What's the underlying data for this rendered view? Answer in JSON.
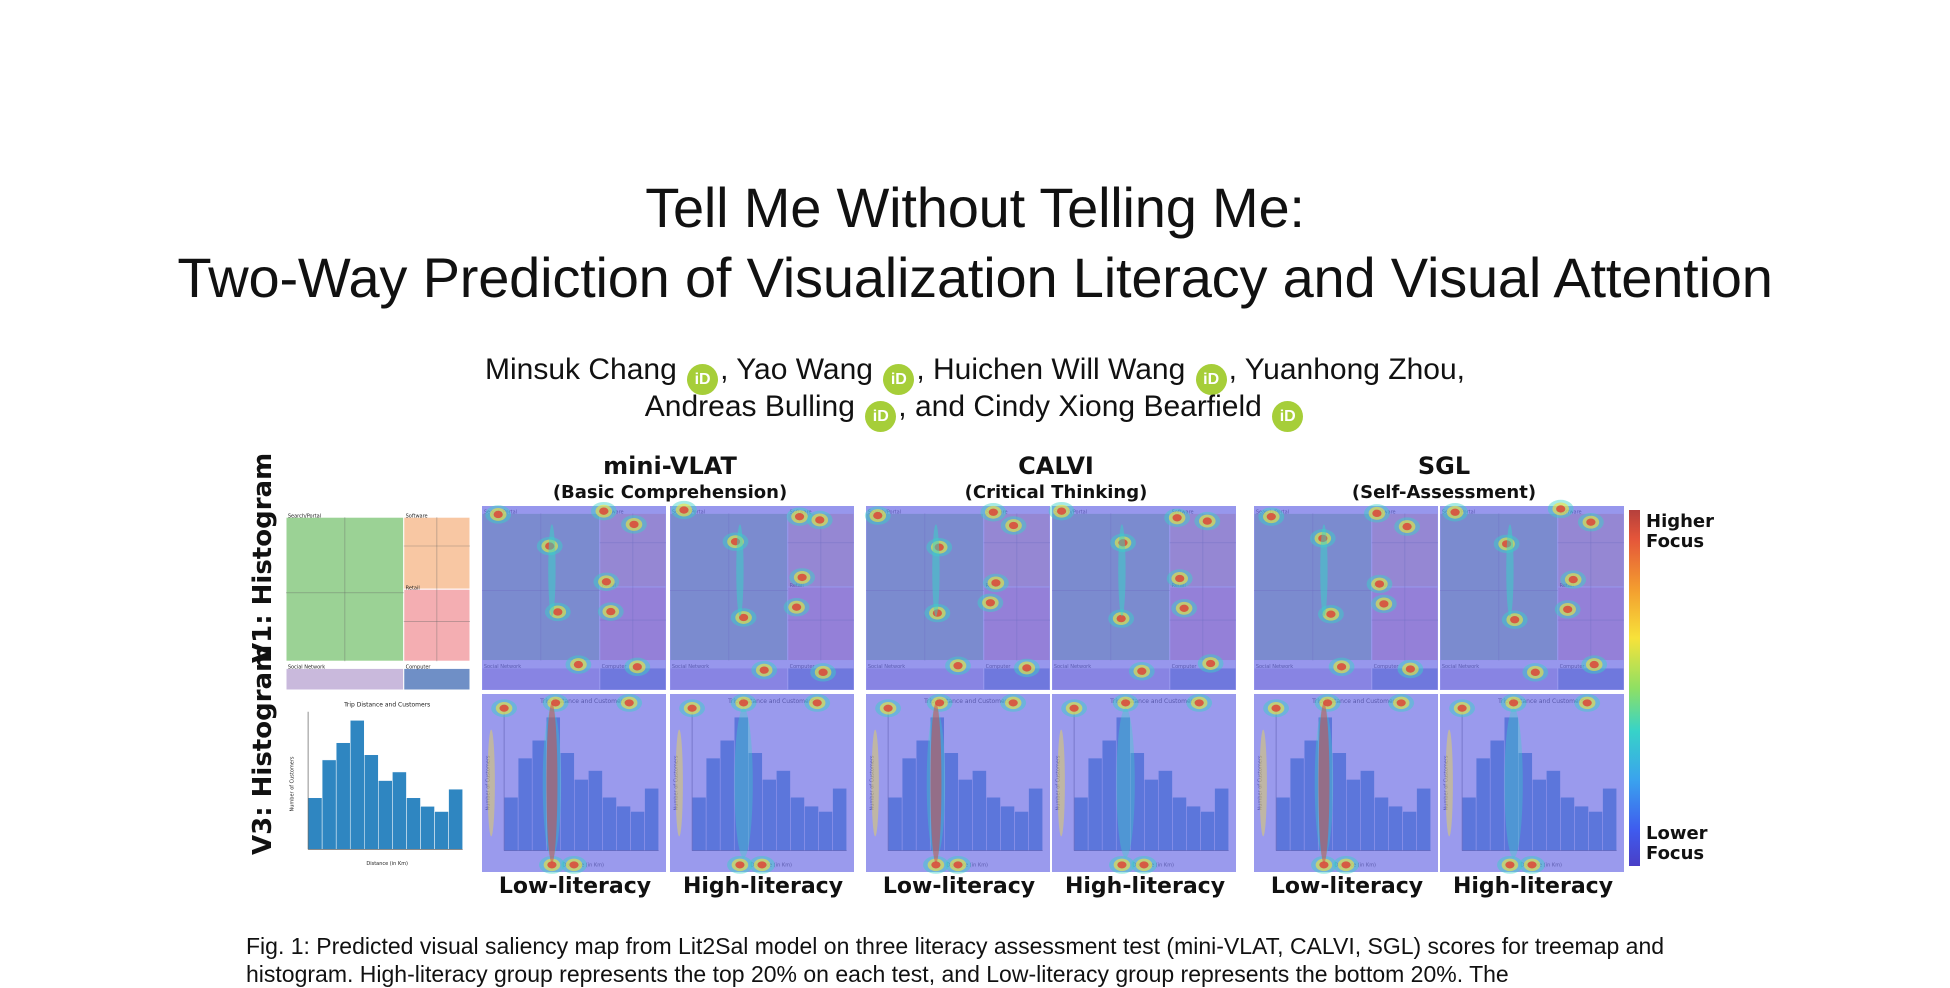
{
  "title": {
    "line1": "Tell Me Without Telling Me:",
    "line2": "Two-Way Prediction of Visualization Literacy and Visual Attention"
  },
  "authors": {
    "line1": [
      {
        "name": "Minsuk Chang",
        "orcid": true,
        "sep": ", "
      },
      {
        "name": "Yao Wang",
        "orcid": true,
        "sep": ", "
      },
      {
        "name": "Huichen Will Wang",
        "orcid": true,
        "sep": ", "
      },
      {
        "name": "Yuanhong Zhou",
        "orcid": false,
        "sep": ","
      }
    ],
    "line2": [
      {
        "name": "Andreas Bulling",
        "orcid": true,
        "sep": ", and "
      },
      {
        "name": "Cindy Xiong Bearfield",
        "orcid": true,
        "sep": ""
      }
    ],
    "orcid_label": "iD"
  },
  "figure": {
    "tests": [
      {
        "name": "mini-VLAT",
        "sub": "(Basic Comprehension)"
      },
      {
        "name": "CALVI",
        "sub": "(Critical Thinking)"
      },
      {
        "name": "SGL",
        "sub": "(Self-Assessment)"
      }
    ],
    "row_labels": {
      "top": "V1: Histogram",
      "bottom": "V3: Histogram"
    },
    "group_labels": [
      "Low-literacy",
      "High-literacy"
    ],
    "colorbar": {
      "top": "Higher Focus",
      "bottom": "Lower Focus"
    },
    "colors": {
      "green": "#9bd295",
      "orange": "#f8c7a3",
      "pink": "#f4aeb2",
      "lavender": "#c9b9dc",
      "blue": "#6f8fc6",
      "bar": "#2f86c1",
      "overlay": "#6f6fe6"
    },
    "treemap": {
      "sections": [
        "Search/Portal",
        "Software",
        "Retail",
        "Social Network",
        "Computer"
      ]
    },
    "histogram": {
      "title": "Trip Distance and Customers",
      "xlabel": "Distance (in Km)",
      "ylabel": "Number of Customers",
      "values": [
        30,
        52,
        62,
        75,
        55,
        40,
        45,
        30,
        25,
        22,
        35
      ]
    }
  },
  "caption": {
    "text": "Fig. 1: Predicted visual saliency map from Lit2Sal model on three literacy assessment test (mini-VLAT, CALVI, SGL) scores for treemap and histogram. High-literacy group represents the top 20% on each test, and Low-literacy group represents the bottom 20%. The"
  }
}
